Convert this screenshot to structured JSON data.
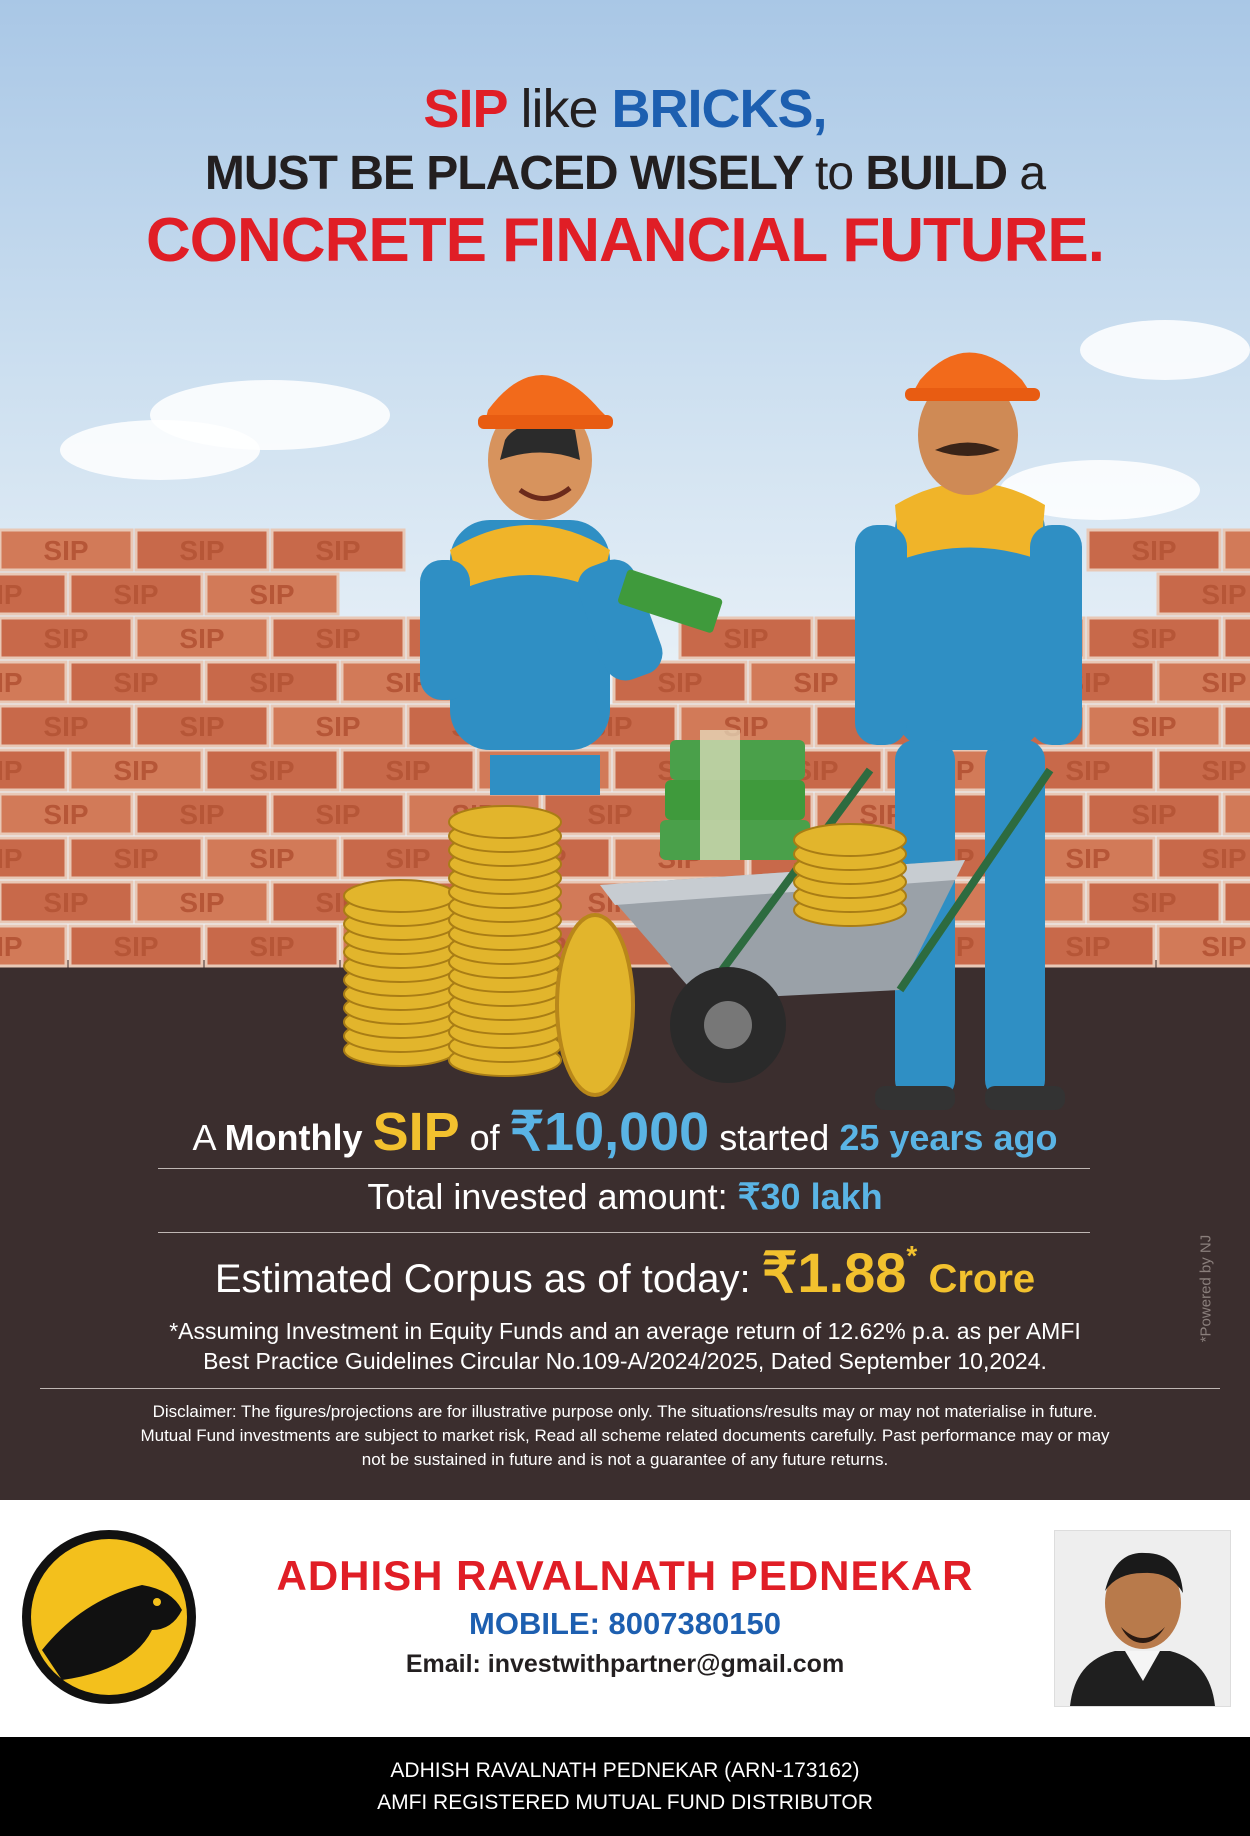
{
  "headline": {
    "line1": {
      "sip": "SIP",
      "like": "like",
      "bricks": "BRICKS,"
    },
    "line2": {
      "a": "MUST BE PLACED WISELY",
      "b": "to",
      "c": "BUILD",
      "d": "a"
    },
    "line3": "CONCRETE FINANCIAL FUTURE."
  },
  "brick_label": "SIP",
  "info": {
    "line1": {
      "a": "A",
      "monthly": "Monthly",
      "sip": "SIP",
      "of": "of",
      "amount": "₹10,000",
      "started": "started",
      "years": "25 years ago"
    },
    "line2": {
      "label": "Total invested amount:",
      "value": "₹30 lakh"
    },
    "line3": {
      "label": "Estimated Corpus as of today:",
      "value": "₹1.88",
      "star": "*",
      "unit": "Crore"
    }
  },
  "assumption": {
    "line1": "*Assuming Investment in Equity Funds and an average return of 12.62% p.a. as per AMFI",
    "line2": "Best Practice  Guidelines Circular No.109-A/2024/2025, Dated September 10,2024."
  },
  "disclaimer": {
    "line1": "Disclaimer: The figures/projections are for illustrative purpose only. The situations/results may or may not materialise in future.",
    "line2": "Mutual Fund investments are subject to market risk, Read all scheme related documents carefully. Past performance may or may",
    "line3": "not be sustained in future and is not a guarantee of any future returns."
  },
  "powered_by": "*Powered by NJ",
  "contact": {
    "name": "ADHISH RAVALNATH PEDNEKAR",
    "mobile": "MOBILE: 8007380150",
    "email": "Email: investwithpartner@gmail.com"
  },
  "footer": {
    "line1": "ADHISH RAVALNATH PEDNEKAR (ARN-173162)",
    "line2": "AMFI REGISTERED MUTUAL FUND DISTRIBUTOR"
  },
  "colors": {
    "red": "#e01e26",
    "blue": "#1d5fb0",
    "brick": "#c8694a",
    "ground": "#3b2e2e",
    "cyan": "#5ab4e5",
    "yellow": "#f2c12e"
  }
}
